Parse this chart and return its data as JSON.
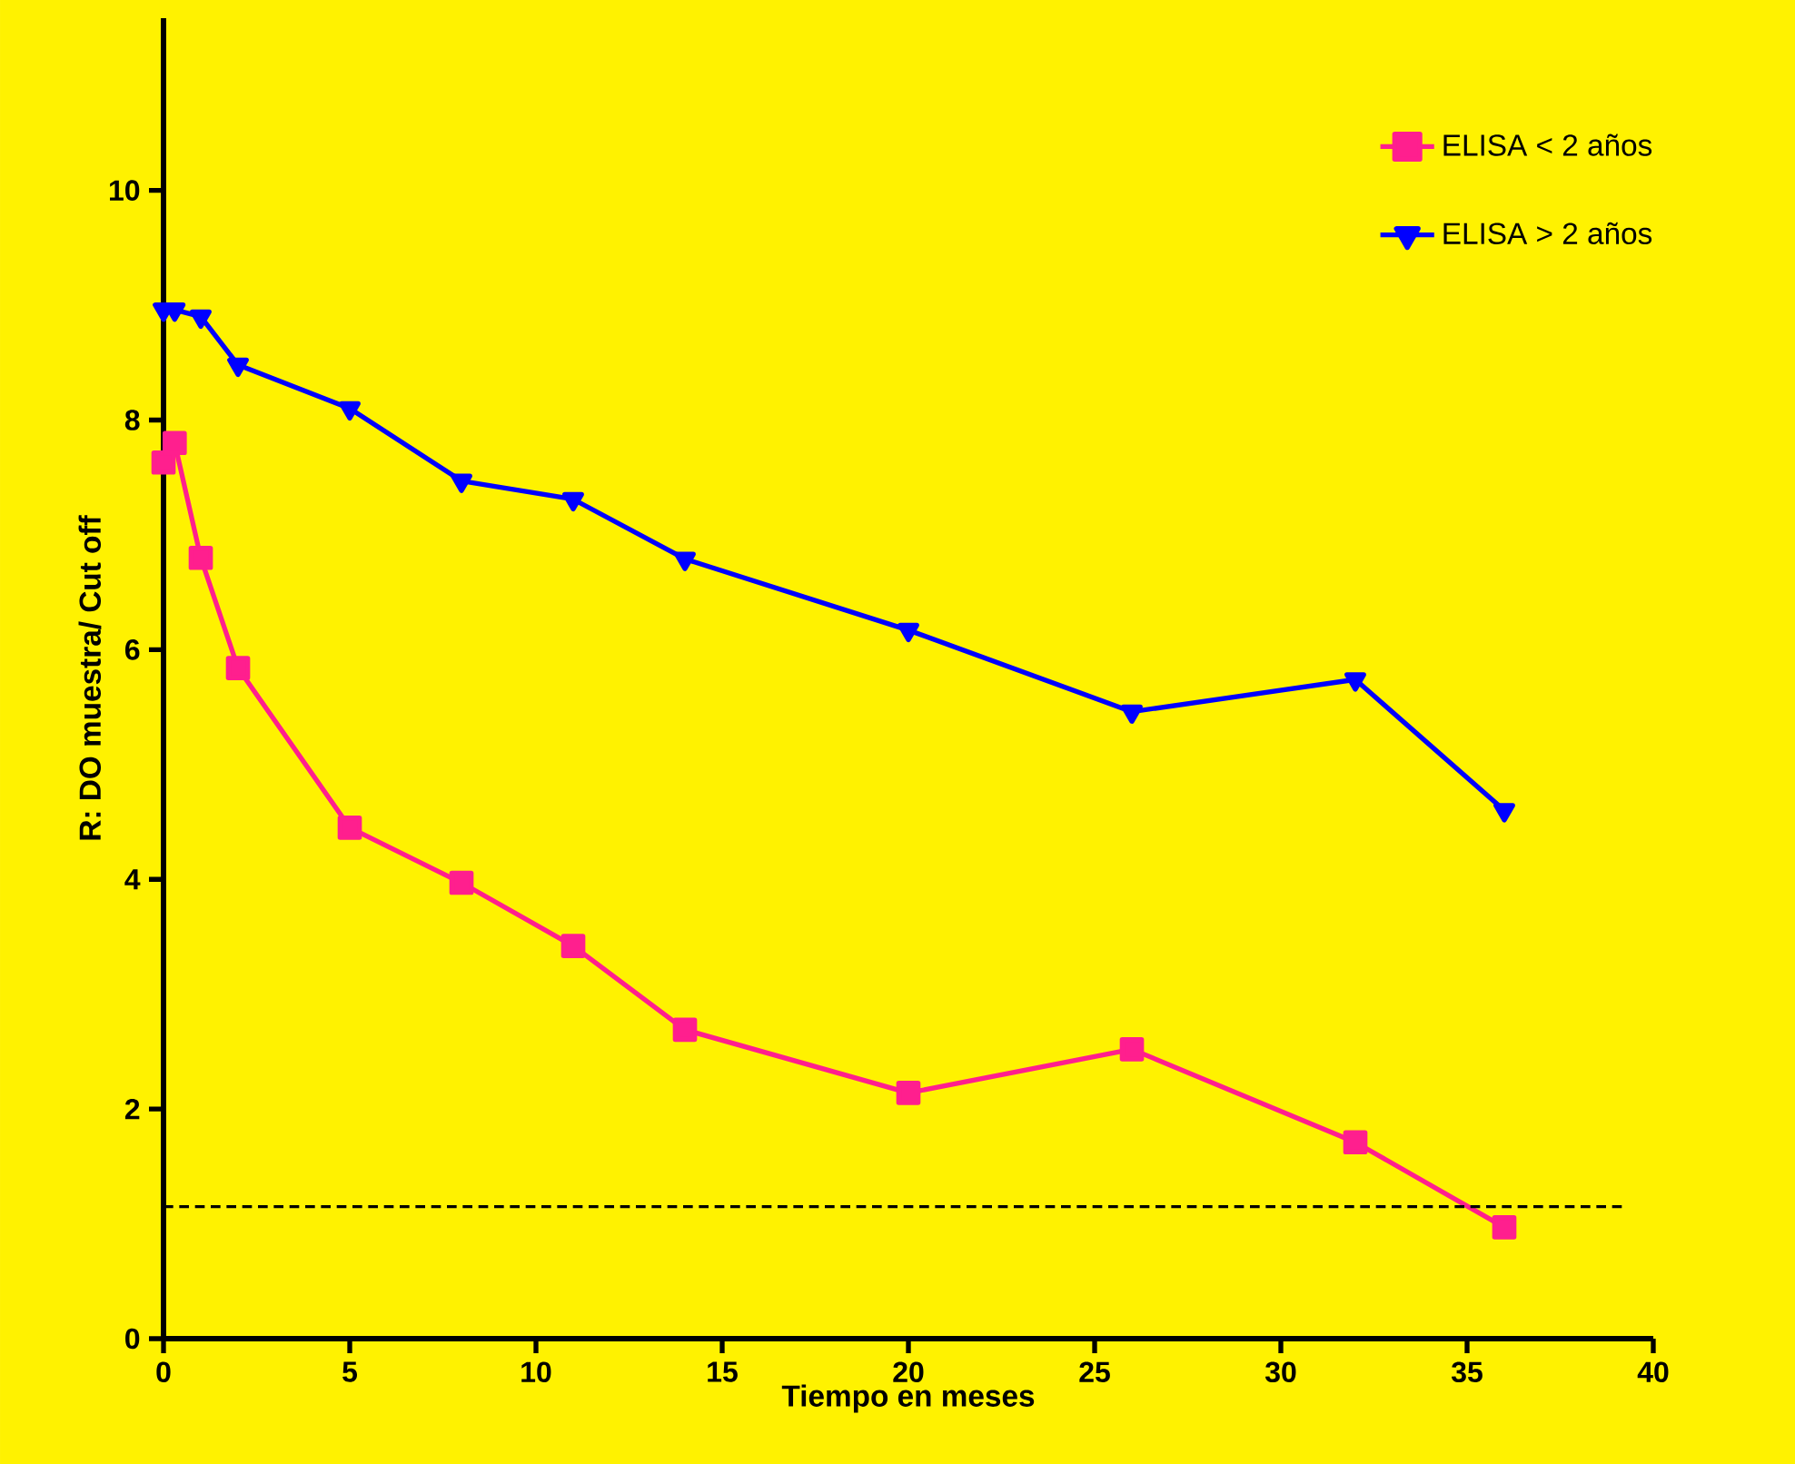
{
  "chart_data": {
    "type": "line",
    "xlabel": "Tiempo en meses",
    "ylabel": "R: DO muestra/ Cut off",
    "xlim": [
      0,
      40
    ],
    "xticks": [
      0,
      5,
      10,
      15,
      20,
      25,
      30,
      35,
      40
    ],
    "ylim": [
      0,
      11.5
    ],
    "yticks": [
      0,
      2,
      4,
      6,
      8,
      10
    ],
    "legend": "top right",
    "grid": false,
    "line_style": "solid",
    "series": [
      {
        "name": "ELISA < 2 años",
        "color": "#ff1f8e",
        "marker": "square",
        "x": [
          0,
          0.3,
          1,
          2,
          5,
          8,
          11,
          14,
          20,
          26,
          32,
          36
        ],
        "values": [
          7.63,
          7.8,
          6.8,
          5.84,
          4.45,
          3.97,
          3.42,
          2.69,
          2.14,
          2.52,
          1.71,
          0.97
        ]
      },
      {
        "name": "ELISA > 2 años",
        "color": "#0000ff",
        "marker": "triangle",
        "x": [
          0,
          0.3,
          1,
          2,
          5,
          8,
          11,
          14,
          20,
          26,
          32,
          36
        ],
        "values": [
          8.96,
          8.96,
          8.9,
          8.48,
          8.1,
          7.47,
          7.31,
          6.79,
          6.17,
          5.46,
          5.74,
          4.6
        ]
      }
    ],
    "ref_lines": [
      {
        "axis": "y",
        "value": 1.15,
        "color": "#000000",
        "line_style": "dashed"
      }
    ]
  }
}
